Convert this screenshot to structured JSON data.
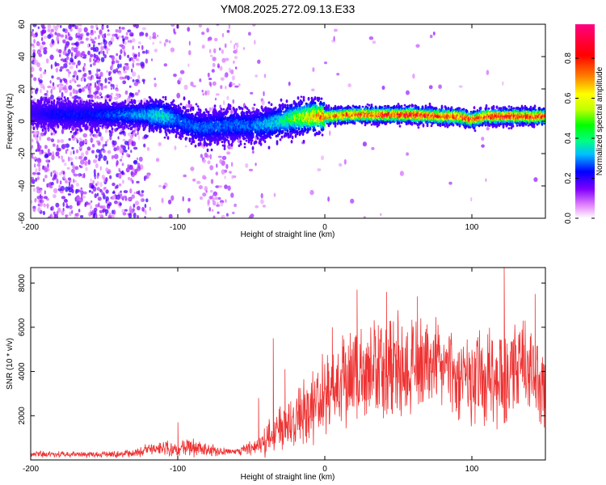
{
  "title": "YM08.2025.272.09.13.E33",
  "chart_data": [
    {
      "type": "heatmap",
      "xlabel": "Height of straight line (km)",
      "ylabel": "Frequency (Hz)",
      "xlim": [
        -200,
        150
      ],
      "ylim": [
        -60,
        60
      ],
      "xticks": [
        -200,
        -100,
        0,
        100
      ],
      "xtick_labels": [
        "-200",
        "-100",
        "0",
        "100"
      ],
      "yticks": [
        -60,
        -40,
        -20,
        0,
        20,
        40,
        60
      ],
      "ytick_labels": [
        "-60",
        "-40",
        "-20",
        "0",
        "20",
        "40",
        "60"
      ],
      "colorbar": {
        "label": "Normalized spectral amplitude",
        "range": [
          0,
          0.97
        ],
        "ticks": [
          0,
          0.2,
          0.4,
          0.6,
          0.8
        ],
        "tick_labels": [
          "0.0",
          "0.2",
          "0.4",
          "0.6",
          "0.8"
        ],
        "colors": [
          "#ffffff",
          "#e080ff",
          "#8000ff",
          "#0000ff",
          "#00c0ff",
          "#00ff80",
          "#00ff00",
          "#c0ff00",
          "#ffff00",
          "#ff8000",
          "#ff0000",
          "#ff0080"
        ]
      },
      "ridge": {
        "x": [
          -200,
          -180,
          -160,
          -140,
          -120,
          -110,
          -100,
          -90,
          -80,
          -70,
          -60,
          -50,
          -40,
          -30,
          -20,
          -10,
          0,
          20,
          40,
          60,
          80,
          90,
          100,
          110,
          120,
          130,
          150
        ],
        "frequency": [
          5,
          4,
          4,
          4,
          4,
          3,
          1,
          -3,
          -4,
          -3,
          -2,
          -3,
          -2,
          0,
          2,
          3,
          3,
          4,
          4,
          4,
          3,
          3,
          1,
          3,
          3,
          3,
          3
        ],
        "peak_amplitude": [
          0.2,
          0.25,
          0.25,
          0.3,
          0.35,
          0.4,
          0.3,
          0.3,
          0.3,
          0.3,
          0.3,
          0.3,
          0.35,
          0.4,
          0.55,
          0.7,
          0.8,
          0.85,
          0.9,
          0.95,
          0.85,
          0.9,
          0.9,
          0.85,
          0.9,
          0.9,
          0.9
        ]
      }
    },
    {
      "type": "line",
      "xlabel": "Height of straight line (km)",
      "ylabel": "SNR (10 * v/v)",
      "xlim": [
        -200,
        150
      ],
      "ylim": [
        0,
        8700
      ],
      "xticks": [
        -200,
        -100,
        0,
        100
      ],
      "xtick_labels": [
        "-200",
        "-100",
        "0",
        "100"
      ],
      "yticks": [
        2000,
        4000,
        6000,
        8000
      ],
      "ytick_labels": [
        "2000",
        "4000",
        "6000",
        "8000"
      ],
      "series": [
        {
          "name": "SNR",
          "color": "#ee3333",
          "envelope_x": [
            -200,
            -150,
            -130,
            -120,
            -100,
            -90,
            -80,
            -70,
            -60,
            -50,
            -40,
            -30,
            -20,
            -10,
            0,
            10,
            20,
            30,
            40,
            50,
            60,
            70,
            80,
            90,
            100,
            110,
            120,
            130,
            140,
            150
          ],
          "envelope_mean": [
            250,
            250,
            300,
            500,
            500,
            600,
            450,
            400,
            350,
            550,
            900,
            1500,
            2000,
            2500,
            3000,
            3500,
            4000,
            4200,
            4300,
            4400,
            4300,
            4200,
            4000,
            3800,
            3700,
            3700,
            3900,
            4000,
            3800,
            3500
          ],
          "envelope_spread": [
            150,
            150,
            200,
            300,
            400,
            500,
            300,
            200,
            150,
            400,
            800,
            1200,
            1500,
            1800,
            2000,
            2200,
            2400,
            2500,
            2500,
            2500,
            2400,
            2300,
            2300,
            2200,
            2300,
            2400,
            2500,
            2500,
            2400,
            2200
          ],
          "peak_x": [
            -100,
            -45,
            -35,
            -27,
            5,
            22,
            42,
            63,
            122,
            143
          ],
          "peak_y": [
            1700,
            2800,
            5500,
            4100,
            6000,
            7700,
            7600,
            7400,
            8700,
            7500
          ]
        }
      ]
    }
  ]
}
